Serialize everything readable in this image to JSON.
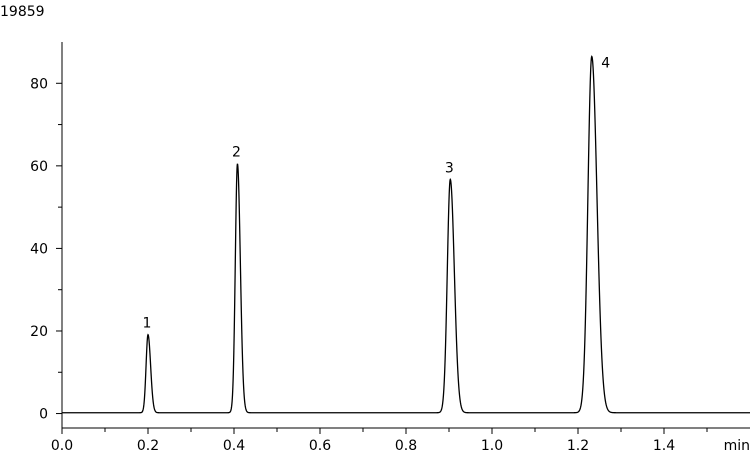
{
  "chart_data": {
    "type": "line",
    "sample_id": "19859",
    "title": "",
    "xlabel": "",
    "ylabel": "",
    "x_unit": "min",
    "xlim": [
      0.0,
      1.6
    ],
    "ylim": [
      -3.5,
      90
    ],
    "x_ticks": [
      "0.0",
      "0.2",
      "0.4",
      "0.6",
      "0.8",
      "1.0",
      "1.2",
      "1.4"
    ],
    "y_ticks": [
      "0",
      "20",
      "40",
      "60",
      "80"
    ],
    "grid": false,
    "baseline": 0.2,
    "peaks": [
      {
        "label": "1",
        "time": 0.2,
        "height": 18.9,
        "width": 0.0045
      },
      {
        "label": "2",
        "time": 0.408,
        "height": 60.3,
        "width": 0.005
      },
      {
        "label": "3",
        "time": 0.903,
        "height": 56.5,
        "width": 0.007
      },
      {
        "label": "4",
        "time": 1.232,
        "height": 86.3,
        "width": 0.009
      }
    ]
  }
}
